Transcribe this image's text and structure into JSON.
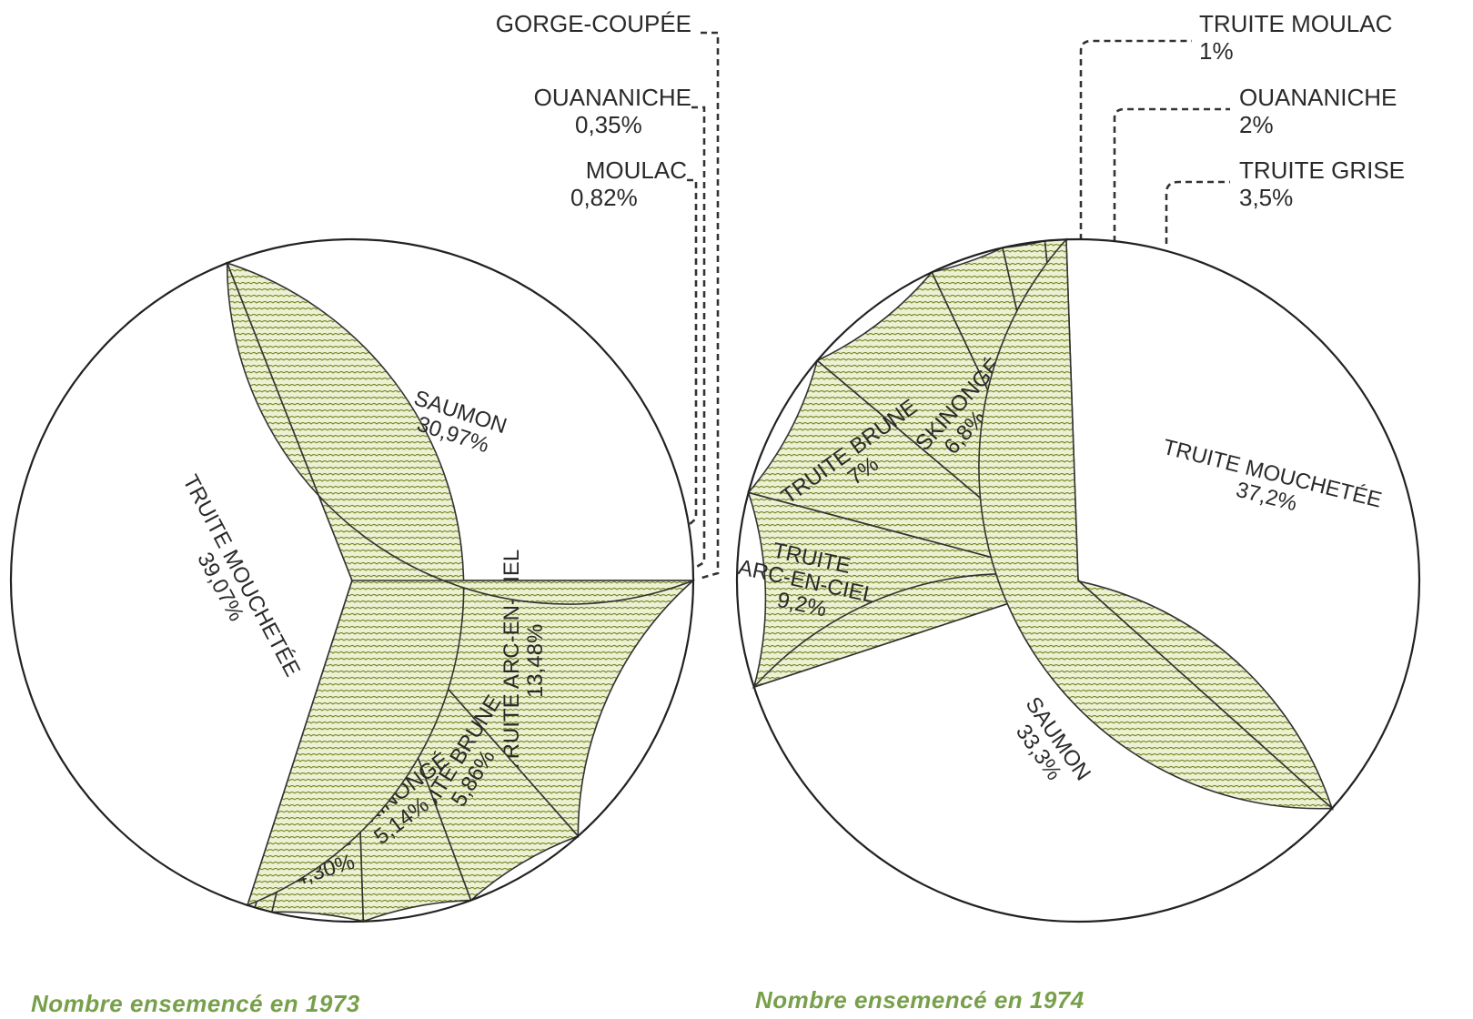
{
  "chart_data": [
    {
      "type": "pie",
      "title": "Nombre ensemencé en 1973",
      "slices": [
        {
          "label": [
            "TRUITE ARC-EN-CIEL"
          ],
          "value": 13.48,
          "pct": "13,48%"
        },
        {
          "label": [
            "TRUITE BRUNE"
          ],
          "value": 5.86,
          "pct": "5,86%"
        },
        {
          "label": [
            "MASKINONGÉ"
          ],
          "value": 5.14,
          "pct": "5,14%"
        },
        {
          "label": [
            "GRISE"
          ],
          "value": 4.3,
          "pct": "4,30%"
        },
        {
          "label": [
            "MOULAC"
          ],
          "value": 0.82,
          "pct": "0,82%"
        },
        {
          "label": [
            "OUANANICHE"
          ],
          "value": 0.35,
          "pct": "0,35%"
        },
        {
          "label": [
            "GORGE-COUPÉE"
          ],
          "value": 0.01,
          "pct": ""
        },
        {
          "label": [
            "TRUITE MOUCHETÉE"
          ],
          "value": 39.07,
          "pct": "39,07%"
        },
        {
          "label": [
            "SAUMON"
          ],
          "value": 30.97,
          "pct": "30,97%"
        }
      ]
    },
    {
      "type": "pie",
      "title": "Nombre ensemencé en 1974",
      "slices": [
        {
          "label": [
            "TRUITE MOULAC"
          ],
          "value": 1,
          "pct": "1%"
        },
        {
          "label": [
            "OUANANICHE"
          ],
          "value": 2,
          "pct": "2%"
        },
        {
          "label": [
            "TRUITE GRISE"
          ],
          "value": 3.5,
          "pct": "3,5%"
        },
        {
          "label": [
            "MASKINONGÉ"
          ],
          "value": 6.8,
          "pct": "6,8%"
        },
        {
          "label": [
            "TRUITE BRUNE"
          ],
          "value": 7,
          "pct": "7%"
        },
        {
          "label": [
            "TRUITE",
            "ARC-EN-CIEL"
          ],
          "value": 9.2,
          "pct": "9,2%"
        },
        {
          "label": [
            "SAUMON"
          ],
          "value": 33.3,
          "pct": "33,3%"
        },
        {
          "label": [
            "TRUITE MOUCHETÉE"
          ],
          "value": 37.2,
          "pct": "37,2%"
        }
      ]
    }
  ],
  "colors": {
    "pattern": "#6f8a25",
    "fill": "#eef0d4",
    "caption": "#78a04a",
    "ink": "#2a2a2a"
  }
}
